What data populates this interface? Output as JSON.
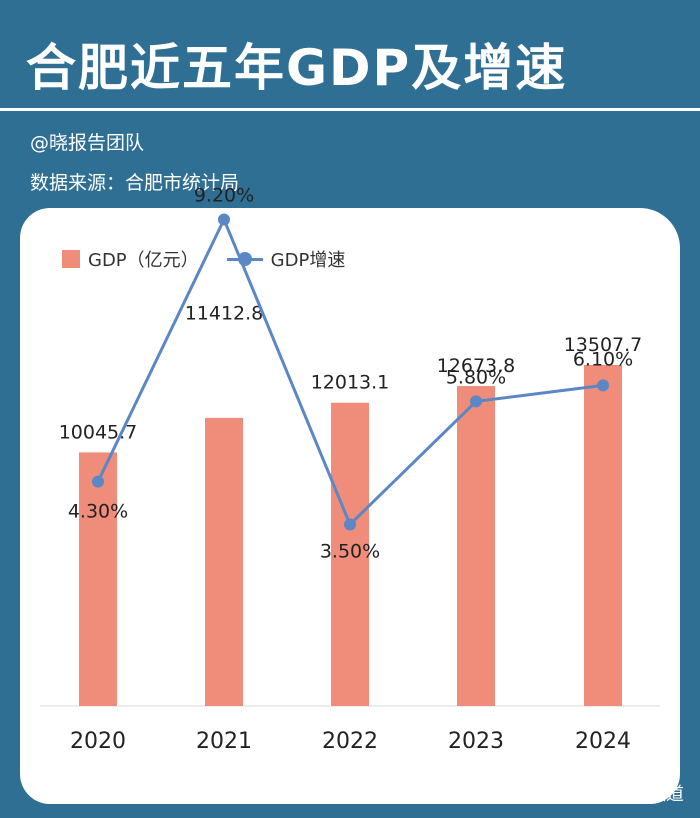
{
  "header": {
    "title": "合肥近五年GDP及增速",
    "author": "@晓报告团队",
    "source": "数据来源：合肥市统计局"
  },
  "legend": {
    "bar_label": "GDP（亿元）",
    "line_label": "GDP增速"
  },
  "watermark": "昊晓波频道",
  "colors": {
    "background": "#2f6f94",
    "bar": "#f08c7a",
    "line": "#5b87c5"
  },
  "chart_data": {
    "type": "bar",
    "categories": [
      "2020",
      "2021",
      "2022",
      "2023",
      "2024"
    ],
    "series": [
      {
        "name": "GDP（亿元）",
        "type": "bar",
        "values": [
          10045.7,
          11412.8,
          12013.1,
          12673.8,
          13507.7
        ],
        "labels": [
          "10045.7",
          "11412.8",
          "12013.1",
          "12673.8",
          "13507.7"
        ]
      },
      {
        "name": "GDP增速",
        "type": "line",
        "values": [
          4.3,
          9.2,
          3.5,
          5.8,
          6.1
        ],
        "labels": [
          "4.30%",
          "9.20%",
          "3.50%",
          "5.80%",
          "6.10%"
        ]
      }
    ],
    "legend_position": "top-left",
    "grid": false
  }
}
